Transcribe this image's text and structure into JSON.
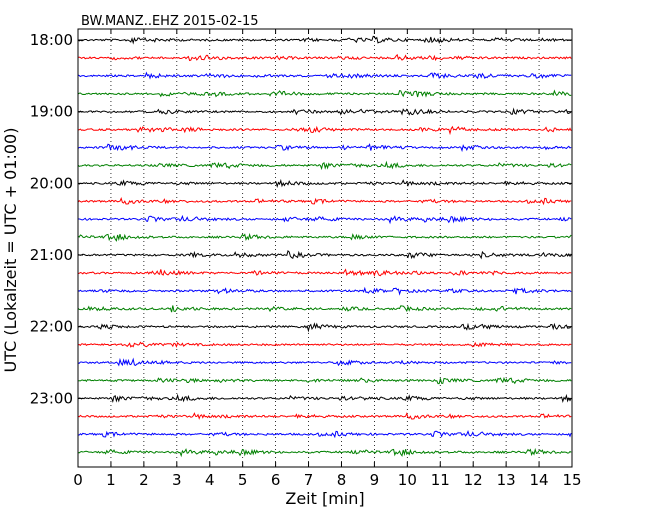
{
  "chart_data": {
    "type": "line",
    "title": "BW.MANZ..EHZ 2015-02-15",
    "xlabel": "Zeit  [min]",
    "ylabel": "UTC (Lokalzeit = UTC + 01:00)",
    "xlim": [
      0,
      15
    ],
    "x_ticks": [
      "0",
      "1",
      "2",
      "3",
      "4",
      "5",
      "6",
      "7",
      "8",
      "9",
      "10",
      "11",
      "12",
      "13",
      "14",
      "15"
    ],
    "y_ticks": [
      "18:00",
      "19:00",
      "20:00",
      "21:00",
      "22:00",
      "23:00"
    ],
    "grid": "vertical dotted",
    "trace_interval_min": 15,
    "trace_colors": [
      "#000000",
      "#ff0000",
      "#0000ff",
      "#008000"
    ],
    "traces": [
      {
        "start": "18:00"
      },
      {
        "start": "18:15"
      },
      {
        "start": "18:30"
      },
      {
        "start": "18:45"
      },
      {
        "start": "19:00"
      },
      {
        "start": "19:15"
      },
      {
        "start": "19:30"
      },
      {
        "start": "19:45"
      },
      {
        "start": "20:00"
      },
      {
        "start": "20:15"
      },
      {
        "start": "20:30"
      },
      {
        "start": "20:45"
      },
      {
        "start": "21:00"
      },
      {
        "start": "21:15"
      },
      {
        "start": "21:30"
      },
      {
        "start": "21:45"
      },
      {
        "start": "22:00"
      },
      {
        "start": "22:15"
      },
      {
        "start": "22:30"
      },
      {
        "start": "22:45"
      },
      {
        "start": "23:00"
      },
      {
        "start": "23:15"
      },
      {
        "start": "23:30"
      },
      {
        "start": "23:45"
      }
    ]
  }
}
